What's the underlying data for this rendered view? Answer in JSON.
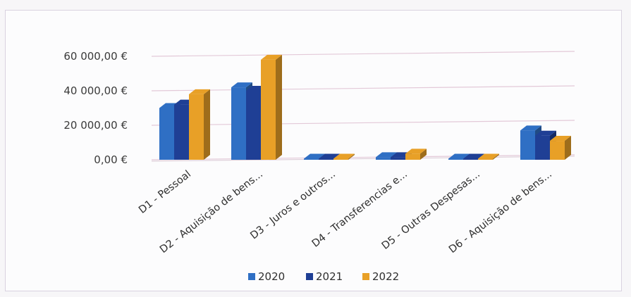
{
  "chart_data": {
    "type": "bar",
    "style": "3d-clustered-column",
    "categories": [
      "D1 - Pessoal",
      "D2 - Aquisição de bens...",
      "D3 - Juros e outros...",
      "D4 - Transferencias e...",
      "D5 - Outras Despesas...",
      "D6 - Aquisição de bens..."
    ],
    "series": [
      {
        "name": "2020",
        "color": "#2f6fc4",
        "values": [
          30000,
          42000,
          300,
          1500,
          300,
          17000
        ]
      },
      {
        "name": "2021",
        "color": "#1f3f95",
        "values": [
          32000,
          40000,
          300,
          1500,
          300,
          14000
        ]
      },
      {
        "name": "2022",
        "color": "#e8a027",
        "values": [
          38000,
          58000,
          400,
          3500,
          600,
          11000
        ]
      }
    ],
    "ylim": [
      0,
      60000
    ],
    "yticks": [
      {
        "value": 0,
        "label": "0,00 €"
      },
      {
        "value": 20000,
        "label": "20 000,00 €"
      },
      {
        "value": 40000,
        "label": "40 000,00 €"
      },
      {
        "value": 60000,
        "label": "60 000,00 €"
      }
    ],
    "grid": true,
    "legend": "bottom"
  }
}
